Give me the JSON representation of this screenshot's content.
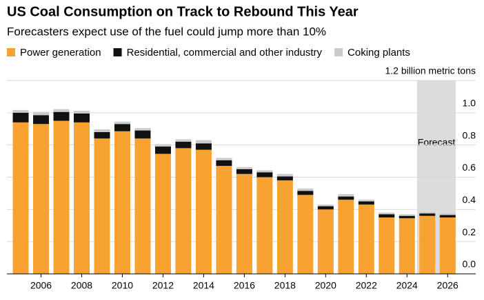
{
  "chart_data": {
    "type": "stacked_bar",
    "title": "US Coal Consumption on Track to Rebound This Year",
    "subtitle": "Forecasters expect use of the fuel could jump more than 10%",
    "categories": [
      null,
      "2006",
      null,
      "2008",
      null,
      "2010",
      null,
      "2012",
      null,
      "2014",
      null,
      "2016",
      null,
      "2018",
      null,
      "2020",
      null,
      "2022",
      null,
      "2024",
      null,
      "2026"
    ],
    "series": [
      {
        "name": "Power generation",
        "color": "#f8a232",
        "values": [
          0.94,
          0.93,
          0.95,
          0.94,
          0.84,
          0.885,
          0.84,
          0.745,
          0.78,
          0.77,
          0.67,
          0.62,
          0.6,
          0.58,
          0.49,
          0.4,
          0.46,
          0.43,
          0.35,
          0.345,
          0.36,
          0.35
        ]
      },
      {
        "name": "Residential, commercial and other industry",
        "color": "#111111",
        "values": [
          0.06,
          0.055,
          0.055,
          0.055,
          0.04,
          0.045,
          0.05,
          0.045,
          0.04,
          0.04,
          0.035,
          0.03,
          0.03,
          0.025,
          0.025,
          0.02,
          0.02,
          0.02,
          0.02,
          0.015,
          0.015,
          0.015
        ]
      },
      {
        "name": "Coking plants",
        "color": "#cbcbcb",
        "values": [
          0.017,
          0.02,
          0.017,
          0.017,
          0.017,
          0.015,
          0.015,
          0.015,
          0.015,
          0.02,
          0.015,
          0.013,
          0.013,
          0.015,
          0.015,
          0.01,
          0.015,
          0.01,
          0.01,
          0.01,
          0.01,
          0.01
        ]
      }
    ],
    "ylim": [
      0,
      1.2
    ],
    "yticks": [
      {
        "value": 0,
        "label": "0.0"
      },
      {
        "value": 0.2,
        "label": "0.2"
      },
      {
        "value": 0.4,
        "label": "0.4"
      },
      {
        "value": 0.6,
        "label": "0.6"
      },
      {
        "value": 0.8,
        "label": "0.8"
      },
      {
        "value": 1.0,
        "label": "1.0"
      },
      {
        "value": 1.2,
        "label": "1.2 billion metric tons"
      }
    ],
    "y_axis_side": "right",
    "grid": true,
    "forecast": {
      "label": "Forecast",
      "from_index": 20
    }
  }
}
